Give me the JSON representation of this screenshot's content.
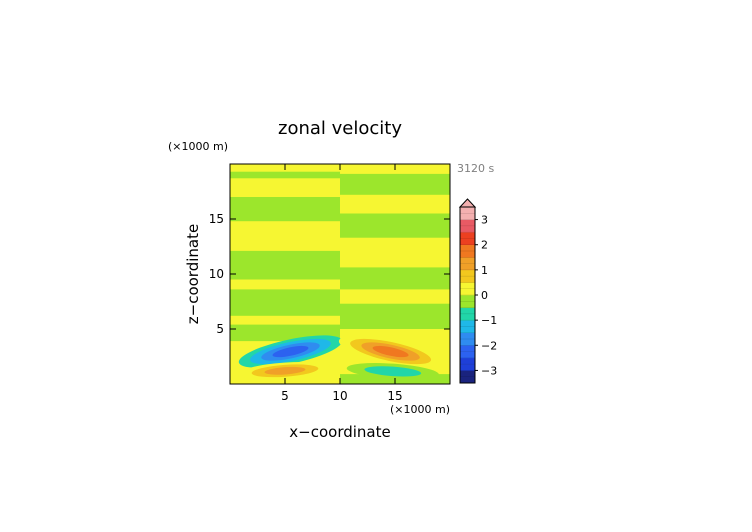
{
  "chart_data": {
    "type": "heatmap",
    "title": "zonal velocity",
    "time_label": "3120 s",
    "xlabel": "x−coordinate",
    "ylabel": "z−coordinate",
    "x_unit": "(×1000 m)",
    "y_unit": "(×1000 m)",
    "xlim": [
      0,
      20
    ],
    "ylim": [
      0,
      20
    ],
    "x_ticks": [
      {
        "value": 5,
        "label": "5"
      },
      {
        "value": 10,
        "label": "10"
      },
      {
        "value": 15,
        "label": "15"
      }
    ],
    "y_ticks": [
      {
        "value": 5,
        "label": "5"
      },
      {
        "value": 10,
        "label": "10"
      },
      {
        "value": 15,
        "label": "15"
      }
    ],
    "colorbar": {
      "range": [
        -3.5,
        3.5
      ],
      "step": 0.25,
      "extend_top": true,
      "ticks": [
        {
          "value": 3,
          "label": "3"
        },
        {
          "value": 2,
          "label": "2"
        },
        {
          "value": 1,
          "label": "1"
        },
        {
          "value": 0,
          "label": "0"
        },
        {
          "value": -1,
          "label": "−1"
        },
        {
          "value": -2,
          "label": "−2"
        },
        {
          "value": -3,
          "label": "−3"
        }
      ],
      "colors": [
        {
          "from": -3.5,
          "to": -3.0,
          "color": "#1a237e"
        },
        {
          "from": -3.0,
          "to": -2.5,
          "color": "#1e3fd8"
        },
        {
          "from": -2.5,
          "to": -2.0,
          "color": "#2c62f0"
        },
        {
          "from": -2.0,
          "to": -1.5,
          "color": "#2f8cf0"
        },
        {
          "from": -1.5,
          "to": -1.0,
          "color": "#1fb8e8"
        },
        {
          "from": -1.0,
          "to": -0.5,
          "color": "#22d6a8"
        },
        {
          "from": -0.5,
          "to": 0.0,
          "color": "#9ce62c"
        },
        {
          "from": 0.0,
          "to": 0.5,
          "color": "#f6f632"
        },
        {
          "from": 0.5,
          "to": 1.0,
          "color": "#f2c81e"
        },
        {
          "from": 1.0,
          "to": 1.5,
          "color": "#f0a028"
        },
        {
          "from": 1.5,
          "to": 2.0,
          "color": "#f07820"
        },
        {
          "from": 2.0,
          "to": 2.5,
          "color": "#ec4020"
        },
        {
          "from": 2.5,
          "to": 3.0,
          "color": "#e85a64"
        },
        {
          "from": 3.0,
          "to": 3.5,
          "color": "#f4b0b0"
        }
      ]
    },
    "fields": [
      {
        "name": "background",
        "color": "#f6f632",
        "x": [
          0,
          20
        ],
        "z": [
          0,
          20
        ]
      },
      {
        "name": "left-band",
        "color": "#9ce62c",
        "x": [
          0,
          10
        ],
        "z": [
          18.7,
          19.3
        ]
      },
      {
        "name": "left-band",
        "color": "#9ce62c",
        "x": [
          0,
          10
        ],
        "z": [
          14.8,
          17.0
        ]
      },
      {
        "name": "left-band",
        "color": "#9ce62c",
        "x": [
          0,
          10
        ],
        "z": [
          9.5,
          12.1
        ]
      },
      {
        "name": "left-band",
        "color": "#9ce62c",
        "x": [
          0,
          10
        ],
        "z": [
          6.2,
          8.6
        ]
      },
      {
        "name": "left-band",
        "color": "#9ce62c",
        "x": [
          0,
          10
        ],
        "z": [
          3.9,
          5.4
        ]
      },
      {
        "name": "right-band",
        "color": "#9ce62c",
        "x": [
          10,
          20
        ],
        "z": [
          17.2,
          19.1
        ]
      },
      {
        "name": "right-band",
        "color": "#9ce62c",
        "x": [
          10,
          20
        ],
        "z": [
          13.3,
          15.5
        ]
      },
      {
        "name": "right-band",
        "color": "#9ce62c",
        "x": [
          10,
          20
        ],
        "z": [
          8.6,
          10.6
        ]
      },
      {
        "name": "right-band",
        "color": "#9ce62c",
        "x": [
          10,
          20
        ],
        "z": [
          5.0,
          7.3
        ]
      },
      {
        "name": "right-band",
        "color": "#9ce62c",
        "x": [
          10,
          20
        ],
        "z": [
          0,
          0.9
        ]
      }
    ],
    "cells": [
      {
        "name": "negative-upper-lobe",
        "x": 5.5,
        "z": 2.95,
        "rx": 4.8,
        "rz": 1.1,
        "angle": -12,
        "levels": [
          -0.75,
          -1.25,
          -1.75,
          -2.25
        ]
      },
      {
        "name": "positive-lower-lobe",
        "x": 5.0,
        "z": 1.2,
        "rx": 4.2,
        "rz": 0.75,
        "angle": -4,
        "levels": [
          0.25,
          0.75,
          1.25
        ]
      },
      {
        "name": "positive-upper-lobe",
        "x": 14.6,
        "z": 2.95,
        "rx": 4.8,
        "rz": 1.1,
        "angle": 12,
        "levels": [
          0.25,
          0.75,
          1.25,
          1.75
        ]
      },
      {
        "name": "negative-lower-lobe",
        "x": 14.8,
        "z": 1.15,
        "rx": 4.2,
        "rz": 0.7,
        "angle": 4,
        "levels": [
          -0.25,
          -0.75
        ]
      }
    ]
  }
}
